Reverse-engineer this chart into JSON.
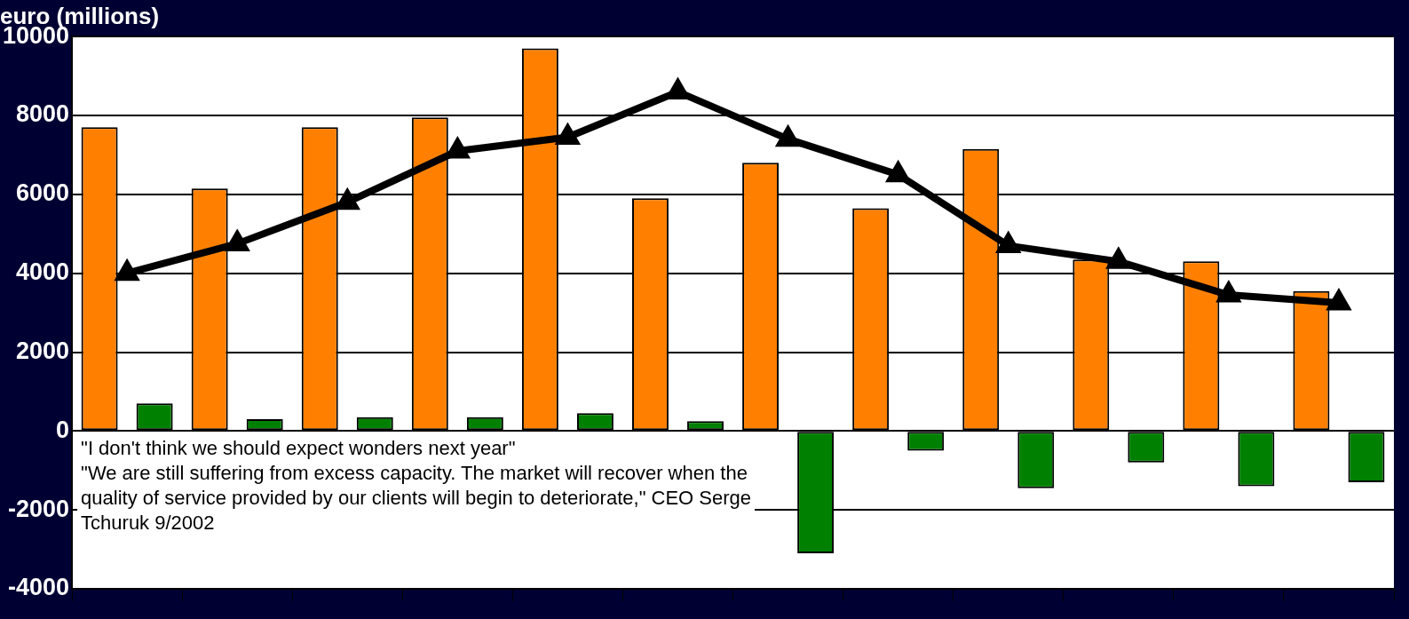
{
  "chart_data": {
    "type": "bar",
    "title": "euro (millions)",
    "categories": [
      null,
      null,
      null,
      null,
      null,
      null,
      null,
      null,
      null,
      null,
      null,
      null
    ],
    "series": [
      {
        "color": "#ff8000",
        "values": [
          7700,
          6150,
          7700,
          7950,
          9700,
          5900,
          6800,
          5650,
          7150,
          4350,
          4300,
          3550
        ]
      },
      {
        "color": "#008000",
        "values": [
          700,
          300,
          350,
          350,
          450,
          250,
          -3100,
          -500,
          -1450,
          -800,
          -1400,
          -1300
        ]
      },
      {
        "type": "line",
        "color": "#000000",
        "values": [
          4000,
          4750,
          5800,
          7100,
          7450,
          8600,
          7400,
          6500,
          4700,
          4300,
          3450,
          3250
        ]
      }
    ],
    "ylim": [
      -4000,
      10000
    ],
    "yticks": [
      -4000,
      -2000,
      0,
      2000,
      4000,
      6000,
      8000,
      10000
    ],
    "grid": "y",
    "legend": false,
    "marker": "triangle",
    "tick_labels": "y",
    "annotations": [
      "\"I don't think we should expect wonders next year\"",
      "\"We are still suffering from excess capacity. The market will recover when the quality of service provided by our clients will begin to deteriorate,\" CEO Serge Tchuruk 9/2002"
    ]
  }
}
